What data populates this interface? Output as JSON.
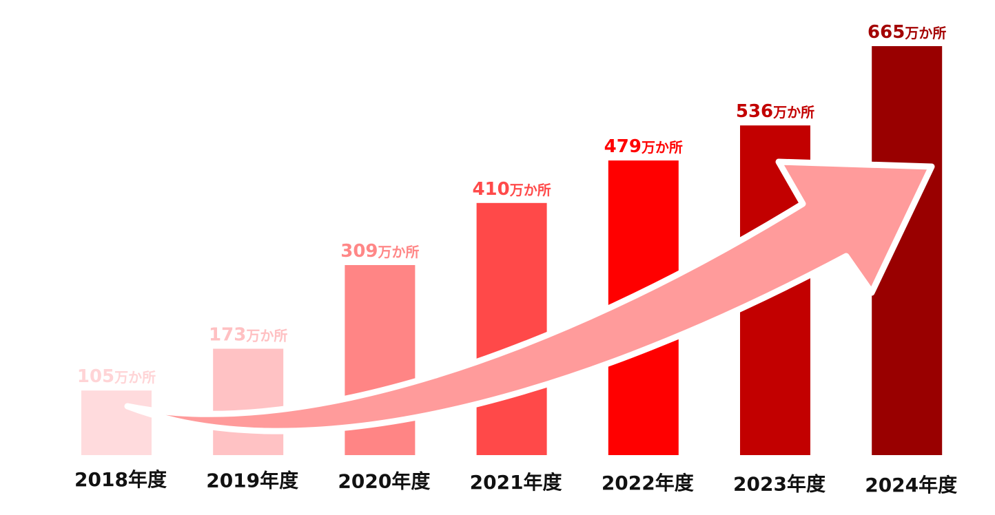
{
  "chart_data": {
    "type": "bar",
    "title": "",
    "xlabel": "",
    "ylabel": "",
    "categories": [
      "2018年度",
      "2019年度",
      "2020年度",
      "2021年度",
      "2022年度",
      "2023年度",
      "2024年度"
    ],
    "values": [
      105,
      173,
      309,
      410,
      479,
      536,
      665
    ],
    "unit": "万か所",
    "ylim": [
      0,
      700
    ],
    "grid": false,
    "legend": "none",
    "colors": [
      "#ffdbdd",
      "#ffc2c4",
      "#ff8585",
      "#ff4949",
      "#ff0000",
      "#c20000",
      "#990000"
    ],
    "label_colors": [
      "#ffd4d6",
      "#ffc0c2",
      "#ff8787",
      "#ff4a4a",
      "#ff0000",
      "#c20000",
      "#a30000"
    ],
    "arrow_color": "#ff9b9b",
    "annotation": "upward-trend-arrow"
  }
}
